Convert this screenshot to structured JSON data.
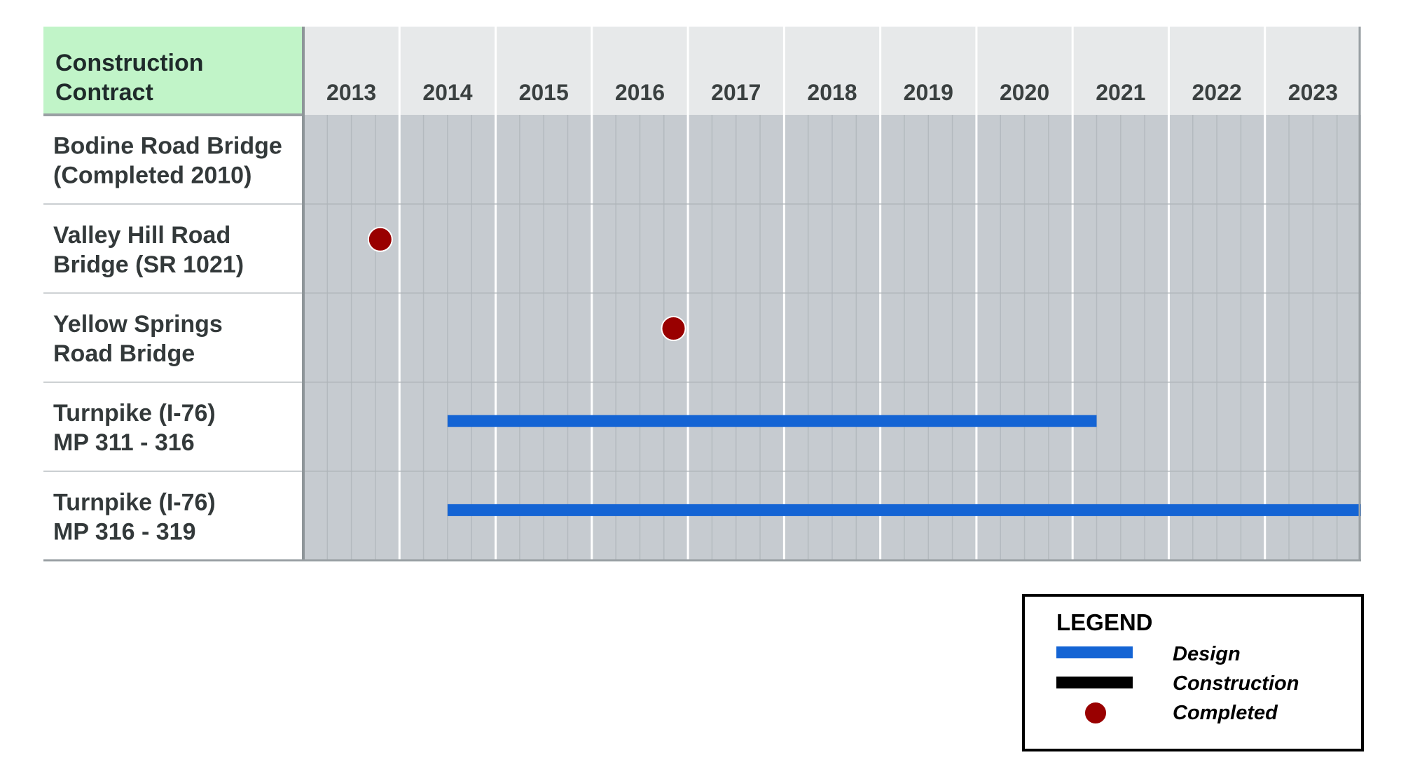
{
  "header": {
    "label_lines": [
      "Construction",
      "Contract"
    ]
  },
  "colors": {
    "header_label_bg": "#c1f4c8",
    "year_header_bg": "#e7e9ea",
    "grid_bg": "#c6cbd0",
    "design": "#1464d4",
    "construction": "#000000",
    "completed": "#990000",
    "row_divider": "#aeb4b8"
  },
  "legend": {
    "title": "LEGEND",
    "items": [
      {
        "label": "Design",
        "symbol": "bar",
        "color": "#1464d4"
      },
      {
        "label": "Construction",
        "symbol": "bar",
        "color": "#000000"
      },
      {
        "label": "Completed",
        "symbol": "dot",
        "color": "#990000"
      }
    ]
  },
  "chart_data": {
    "type": "gantt",
    "years": [
      "2013",
      "2014",
      "2015",
      "2016",
      "2017",
      "2018",
      "2019",
      "2020",
      "2021",
      "2022",
      "2023"
    ],
    "x_range": [
      2013.0,
      2024.0
    ],
    "subdivisions_per_year": 4,
    "grid": true,
    "legend_position": "bottom-right",
    "rows": [
      {
        "label_lines": [
          "Bodine Road Bridge",
          "(Completed 2010)"
        ],
        "bars": [],
        "completed": []
      },
      {
        "label_lines": [
          "Valley Hill Road",
          "Bridge (SR 1021)"
        ],
        "bars": [],
        "completed": [
          2013.8
        ]
      },
      {
        "label_lines": [
          "Yellow Springs",
          "Road Bridge"
        ],
        "bars": [],
        "completed": [
          2016.85
        ]
      },
      {
        "label_lines": [
          "Turnpike (I-76)",
          "MP 311 - 316"
        ],
        "bars": [
          {
            "kind": "design",
            "start": 2014.5,
            "end": 2021.25
          }
        ],
        "completed": []
      },
      {
        "label_lines": [
          "Turnpike (I-76)",
          "MP 316 - 319"
        ],
        "bars": [
          {
            "kind": "design",
            "start": 2014.5,
            "end": 2024.0
          }
        ],
        "completed": []
      }
    ]
  }
}
